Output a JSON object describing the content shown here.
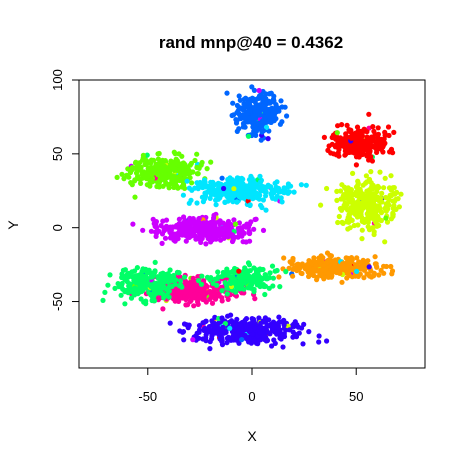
{
  "chart_data": {
    "type": "scatter",
    "title": "rand mnp@40 = 0.4362",
    "xlabel": "X",
    "ylabel": "Y",
    "xlim": [
      -83,
      83
    ],
    "ylim": [
      -95,
      100
    ],
    "xticks": [
      -50,
      0,
      50
    ],
    "yticks": [
      -50,
      0,
      50,
      100
    ],
    "xtick_labels": [
      "-50",
      "0",
      "50"
    ],
    "ytick_labels": [
      "-50",
      "0",
      "50",
      "100"
    ],
    "grid": false,
    "legend": "none",
    "clusters": [
      {
        "color": "#0066ff",
        "center": [
          3,
          77
        ],
        "spread": [
          9,
          12
        ],
        "count": 280
      },
      {
        "color": "#ff0000",
        "center": [
          51,
          57
        ],
        "spread": [
          11,
          9
        ],
        "count": 240
      },
      {
        "color": "#66ff00",
        "center": [
          -42,
          38
        ],
        "spread": [
          14,
          9
        ],
        "count": 280
      },
      {
        "color": "#00e5ff",
        "center": [
          -5,
          25
        ],
        "spread": [
          20,
          7
        ],
        "count": 320
      },
      {
        "color": "#ccff00",
        "center": [
          55,
          15
        ],
        "spread": [
          12,
          14
        ],
        "count": 320
      },
      {
        "color": "#cc00ff",
        "center": [
          -23,
          -1
        ],
        "spread": [
          19,
          7
        ],
        "count": 340
      },
      {
        "color": "#ff9900",
        "center": [
          40,
          -27
        ],
        "spread": [
          19,
          6
        ],
        "count": 300
      },
      {
        "color": "#ff0099",
        "center": [
          -28,
          -42
        ],
        "spread": [
          20,
          7
        ],
        "count": 360
      },
      {
        "color": "#00ff66",
        "center": [
          -50,
          -38
        ],
        "spread": [
          13,
          9
        ],
        "count": 260
      },
      {
        "color": "#00ff66",
        "center": [
          -4,
          -35
        ],
        "spread": [
          13,
          7
        ],
        "count": 180
      },
      {
        "color": "#3300ff",
        "center": [
          -3,
          -70
        ],
        "spread": [
          22,
          7
        ],
        "count": 360
      }
    ]
  }
}
